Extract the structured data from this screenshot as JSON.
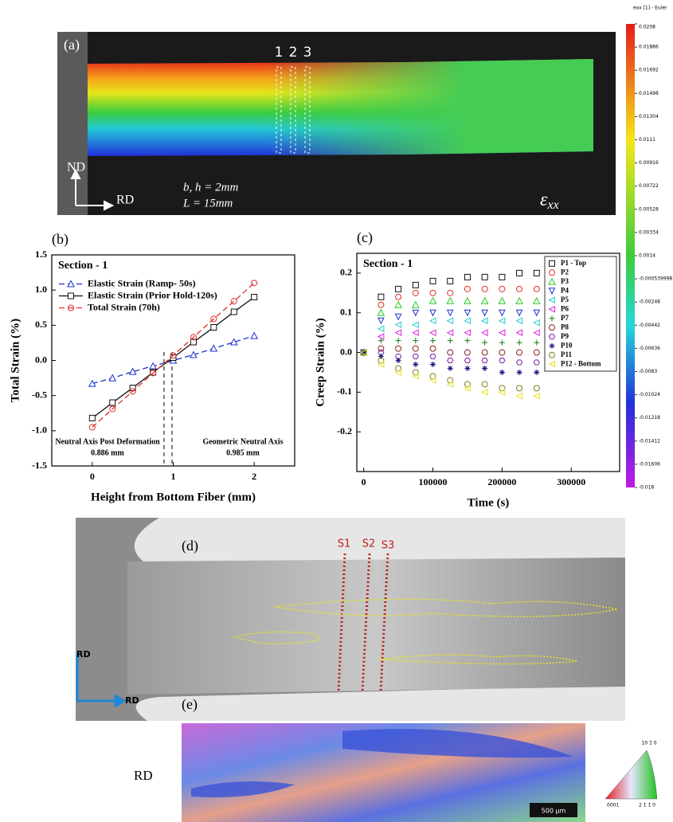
{
  "chart_data": [
    {
      "type": "line",
      "panel_label": "(b)",
      "section_label": "Section - 1",
      "xlabel": "Height from Bottom Fiber (mm)",
      "ylabel": "Total Strain (%)",
      "x": [
        0,
        0.25,
        0.5,
        0.75,
        1,
        1.25,
        1.5,
        1.75,
        2
      ],
      "series": [
        {
          "name": "Elastic Strain (Ramp- 50s)",
          "color": "#1f2fd0",
          "marker": "tri-up",
          "line_style": "dashed",
          "values": [
            -0.33,
            -0.25,
            -0.16,
            -0.08,
            0.0,
            0.08,
            0.17,
            0.26,
            0.35
          ]
        },
        {
          "name": "Elastic Strain (Prior Hold-120s)",
          "color": "#111111",
          "marker": "square",
          "line_style": "solid",
          "values": [
            -0.82,
            -0.6,
            -0.39,
            -0.17,
            0.04,
            0.26,
            0.47,
            0.69,
            0.9
          ]
        },
        {
          "name": "Total Strain (70h)",
          "color": "#e03030",
          "marker": "circle",
          "line_style": "dashed",
          "values": [
            -0.95,
            -0.69,
            -0.44,
            -0.18,
            0.07,
            0.33,
            0.59,
            0.84,
            1.1
          ]
        }
      ],
      "xlim": [
        -0.5,
        2.5
      ],
      "xticks": [
        0,
        1,
        2
      ],
      "ylim": [
        -1.5,
        1.5
      ],
      "yticks": [
        -1.5,
        {
          "value": -1,
          "label": "-1.0"
        },
        -0.5,
        {
          "value": 0,
          "label": "0.0"
        },
        0.5,
        {
          "value": 1,
          "label": "1.0"
        },
        1.5
      ],
      "vlines": [
        0.886,
        0.985
      ],
      "notes": [
        {
          "text": "Neutral Axis Post Deformation",
          "value": "0.886 mm"
        },
        {
          "text": "Geometric Neutral Axis",
          "value": "0.985 mm"
        }
      ],
      "legend": "upper left"
    },
    {
      "type": "scatter",
      "panel_label": "(c)",
      "section_label": "Section - 1",
      "xlabel": "Time (s)",
      "ylabel": "Creep Strain (%)",
      "x": [
        0,
        25000,
        50000,
        75000,
        100000,
        125000,
        150000,
        175000,
        200000,
        225000,
        250000
      ],
      "series": [
        {
          "name": "P1 - Top",
          "color": "#111111",
          "marker": "square",
          "values": [
            0,
            0.14,
            0.16,
            0.17,
            0.18,
            0.18,
            0.19,
            0.19,
            0.19,
            0.2,
            0.2
          ]
        },
        {
          "name": "P2",
          "color": "#e03030",
          "marker": "circle",
          "values": [
            0,
            0.12,
            0.14,
            0.15,
            0.15,
            0.15,
            0.16,
            0.16,
            0.16,
            0.16,
            0.16
          ]
        },
        {
          "name": "P3",
          "color": "#22cc22",
          "marker": "tri-up",
          "values": [
            0,
            0.1,
            0.12,
            0.12,
            0.13,
            0.13,
            0.13,
            0.13,
            0.13,
            0.13,
            0.13
          ]
        },
        {
          "name": "P4",
          "color": "#1f2fd0",
          "marker": "tri-down",
          "values": [
            0,
            0.08,
            0.09,
            0.1,
            0.1,
            0.1,
            0.1,
            0.1,
            0.1,
            0.1,
            0.1
          ]
        },
        {
          "name": "P5",
          "color": "#22cccc",
          "marker": "tri-left",
          "values": [
            0,
            0.06,
            0.07,
            0.07,
            0.08,
            0.08,
            0.08,
            0.08,
            0.08,
            0.08,
            0.075
          ]
        },
        {
          "name": "P6",
          "color": "#dd22dd",
          "marker": "tri-left",
          "values": [
            0,
            0.04,
            0.05,
            0.05,
            0.05,
            0.05,
            0.05,
            0.05,
            0.05,
            0.05,
            0.05
          ]
        },
        {
          "name": "P7",
          "color": "#137a13",
          "marker": "plus",
          "values": [
            0,
            0.03,
            0.03,
            0.03,
            0.03,
            0.03,
            0.03,
            0.025,
            0.025,
            0.025,
            0.025
          ]
        },
        {
          "name": "P8",
          "color": "#8b2020",
          "marker": "circle",
          "values": [
            0,
            0.01,
            0.01,
            0.01,
            0.01,
            0.0,
            0.0,
            0.0,
            0.0,
            0.0,
            0.0
          ]
        },
        {
          "name": "P9",
          "color": "#7a22aa",
          "marker": "hexagon",
          "values": [
            0,
            0.0,
            -0.01,
            -0.01,
            -0.01,
            -0.02,
            -0.02,
            -0.02,
            -0.02,
            -0.025,
            -0.025
          ]
        },
        {
          "name": "P10",
          "color": "#1a1a80",
          "marker": "star",
          "values": [
            0,
            -0.01,
            -0.02,
            -0.03,
            -0.03,
            -0.04,
            -0.04,
            -0.04,
            -0.05,
            -0.05,
            -0.05
          ]
        },
        {
          "name": "P11",
          "color": "#808020",
          "marker": "circle",
          "values": [
            0,
            -0.02,
            -0.04,
            -0.05,
            -0.06,
            -0.07,
            -0.08,
            -0.08,
            -0.09,
            -0.09,
            -0.09
          ]
        },
        {
          "name": "P12 - Bottom",
          "color": "#e8e020",
          "marker": "tri-left",
          "values": [
            0,
            -0.03,
            -0.05,
            -0.06,
            -0.07,
            -0.08,
            -0.09,
            -0.1,
            -0.1,
            -0.11,
            -0.11
          ]
        }
      ],
      "xlim": [
        -10000,
        370000
      ],
      "xticks": [
        0,
        100000,
        200000,
        300000
      ],
      "ylim": [
        -0.3,
        0.25
      ],
      "yticks": [
        -0.2,
        -0.1,
        {
          "value": 0,
          "label": "0.0"
        },
        0.1,
        0.2
      ],
      "legend": "upper right"
    }
  ],
  "colorbar": {
    "title": "exx [1] - Euler",
    "ticks": [
      0.0208,
      0.01886,
      0.01692,
      0.01498,
      0.01304,
      0.0111,
      0.00916,
      0.00722,
      0.00528,
      0.00334,
      0.0014,
      -0.000539998,
      -0.00248,
      -0.00442,
      -0.00636,
      -0.0083,
      -0.01024,
      -0.01218,
      -0.01412,
      -0.01606,
      -0.018
    ]
  },
  "panel_a": {
    "label": "(a)",
    "sections": [
      "1",
      "2",
      "3"
    ],
    "axis_up": "ND",
    "axis_right": "RD",
    "dims": [
      "b, h = 2mm",
      "L = 15mm"
    ],
    "field": "ε",
    "field_sub": "xx"
  },
  "panel_d": {
    "label": "(d)",
    "sections": [
      "S1",
      "S2",
      "S3"
    ],
    "axis_up": "RD",
    "axis_right": "RD"
  },
  "panel_e": {
    "label": "(e)",
    "axis": "RD",
    "scale_bar": "500 µm",
    "ipf": [
      "10 1̄ 0",
      "0001",
      "2 1̄ 1̄ 0"
    ]
  }
}
